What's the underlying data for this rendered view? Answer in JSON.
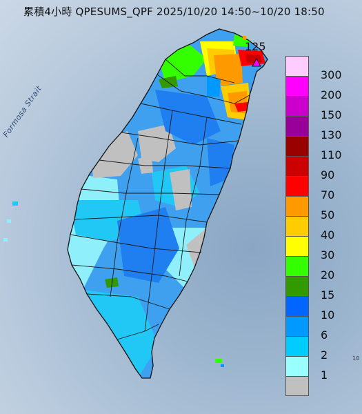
{
  "title": "累積4小時 QPESUMS_QPF 2025/10/20 14:50~10/20 18:50",
  "strait_label": "Formosa Strait",
  "max_value_label": "125",
  "corner_text": "10",
  "legend": {
    "items": [
      {
        "label": "300",
        "color": "#ffccff"
      },
      {
        "label": "200",
        "color": "#ff00ff"
      },
      {
        "label": "150",
        "color": "#cc00cc"
      },
      {
        "label": "130",
        "color": "#990099"
      },
      {
        "label": "110",
        "color": "#990000"
      },
      {
        "label": "90",
        "color": "#cc0000"
      },
      {
        "label": "70",
        "color": "#ff0000"
      },
      {
        "label": "50",
        "color": "#ff9900"
      },
      {
        "label": "40",
        "color": "#ffcc00"
      },
      {
        "label": "30",
        "color": "#ffff00"
      },
      {
        "label": "20",
        "color": "#33ff00"
      },
      {
        "label": "15",
        "color": "#339900"
      },
      {
        "label": "10",
        "color": "#0066ff"
      },
      {
        "label": "6",
        "color": "#0099ff"
      },
      {
        "label": "2",
        "color": "#00ccff"
      },
      {
        "label": "1",
        "color": "#99ffff"
      },
      {
        "label": "",
        "color": "#c0c0c0"
      }
    ]
  }
}
